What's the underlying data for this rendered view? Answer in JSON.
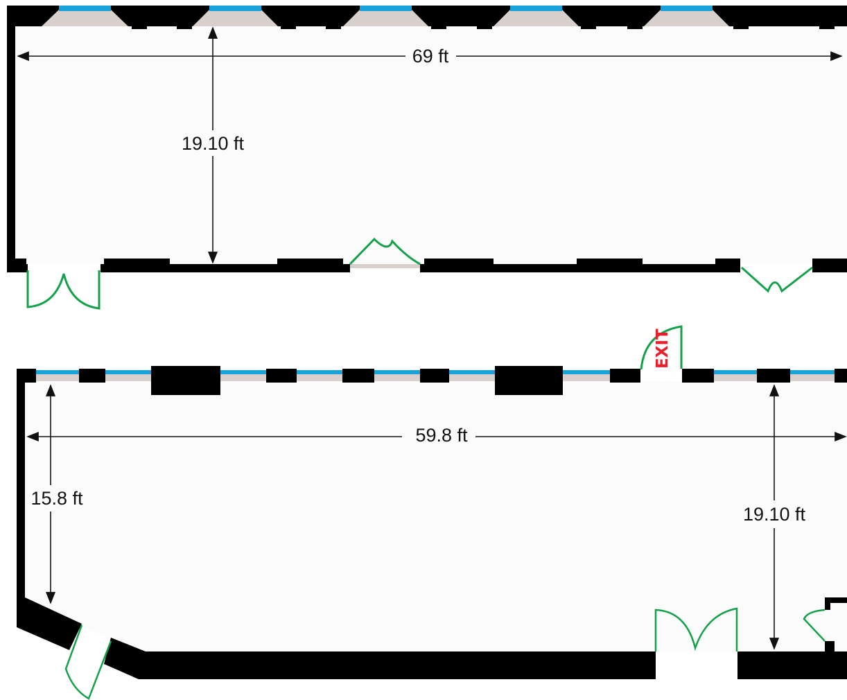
{
  "floorplan": {
    "top_room": {
      "width_label": "69 ft",
      "depth_label": "19.10 ft"
    },
    "bottom_room": {
      "width_label": "59.8 ft",
      "left_depth_label": "15.8 ft",
      "right_depth_label": "19.10 ft",
      "exit_sign": "EXIT"
    }
  },
  "colors": {
    "wall": "#000000",
    "floor": "#fbfbfb",
    "window_glass": "#1aa3db",
    "window_sill": "#d7d0cd",
    "door": "#15a04a",
    "exit_sign": "#e8202a",
    "dimension": "#111111"
  },
  "icons": [
    "dimension-arrow",
    "swing-door",
    "window"
  ]
}
